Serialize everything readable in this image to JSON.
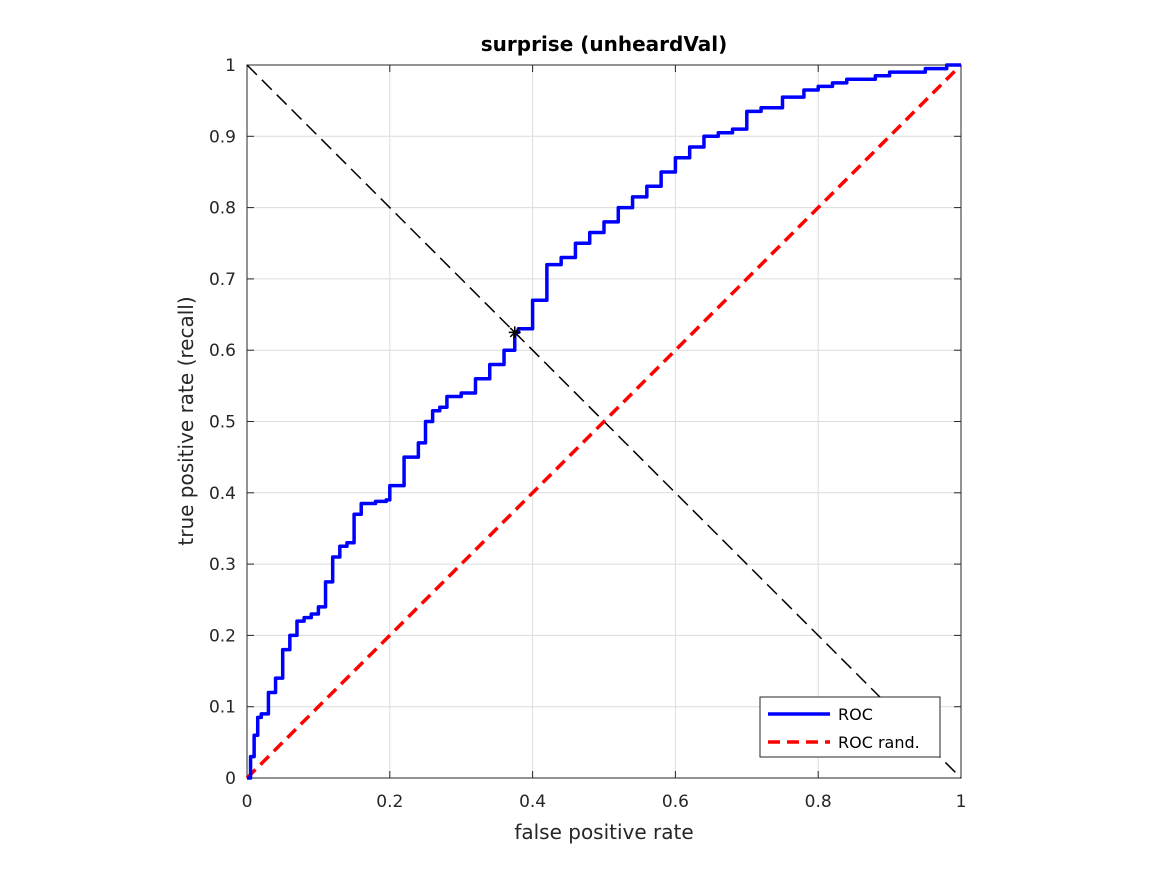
{
  "chart_data": {
    "type": "line",
    "title": "surprise (unheardVal)",
    "xlabel": "false positive rate",
    "ylabel": "true positive rate (recall)",
    "xlim": [
      0,
      1
    ],
    "ylim": [
      0,
      1
    ],
    "x_ticks": [
      "0",
      "0.2",
      "0.4",
      "0.6",
      "0.8",
      "1"
    ],
    "y_ticks": [
      "0",
      "0.1",
      "0.2",
      "0.3",
      "0.4",
      "0.5",
      "0.6",
      "0.7",
      "0.8",
      "0.9",
      "1"
    ],
    "grid": true,
    "legend_position": "bottom-right",
    "series": [
      {
        "name": "ROC",
        "color": "#0000ff",
        "style": "solid",
        "x": [
          0,
          0.005,
          0.01,
          0.015,
          0.02,
          0.03,
          0.04,
          0.05,
          0.06,
          0.07,
          0.08,
          0.09,
          0.1,
          0.11,
          0.12,
          0.13,
          0.14,
          0.15,
          0.16,
          0.18,
          0.195,
          0.2,
          0.22,
          0.24,
          0.25,
          0.26,
          0.27,
          0.28,
          0.3,
          0.32,
          0.34,
          0.36,
          0.375,
          0.38,
          0.4,
          0.42,
          0.44,
          0.46,
          0.48,
          0.5,
          0.52,
          0.54,
          0.56,
          0.58,
          0.6,
          0.62,
          0.64,
          0.66,
          0.68,
          0.7,
          0.72,
          0.75,
          0.78,
          0.8,
          0.82,
          0.84,
          0.86,
          0.88,
          0.9,
          0.92,
          0.95,
          0.98,
          1
        ],
        "y": [
          0,
          0.03,
          0.06,
          0.085,
          0.09,
          0.12,
          0.14,
          0.18,
          0.2,
          0.22,
          0.225,
          0.23,
          0.24,
          0.275,
          0.31,
          0.325,
          0.33,
          0.37,
          0.385,
          0.388,
          0.39,
          0.41,
          0.45,
          0.47,
          0.5,
          0.515,
          0.52,
          0.535,
          0.54,
          0.56,
          0.58,
          0.6,
          0.625,
          0.63,
          0.67,
          0.72,
          0.73,
          0.75,
          0.765,
          0.78,
          0.8,
          0.815,
          0.83,
          0.85,
          0.87,
          0.885,
          0.9,
          0.905,
          0.91,
          0.935,
          0.94,
          0.955,
          0.965,
          0.97,
          0.975,
          0.98,
          0.98,
          0.985,
          0.99,
          0.99,
          0.995,
          1,
          1
        ]
      },
      {
        "name": "ROC rand.",
        "color": "#ff0000",
        "style": "dashed",
        "x": [
          0,
          1
        ],
        "y": [
          0,
          1
        ]
      }
    ],
    "reference_line": {
      "color": "#000000",
      "style": "dashed",
      "x": [
        0,
        1
      ],
      "y": [
        1,
        0
      ]
    },
    "marker": {
      "x": 0.375,
      "y": 0.625,
      "symbol": "*",
      "color": "#000000"
    }
  }
}
